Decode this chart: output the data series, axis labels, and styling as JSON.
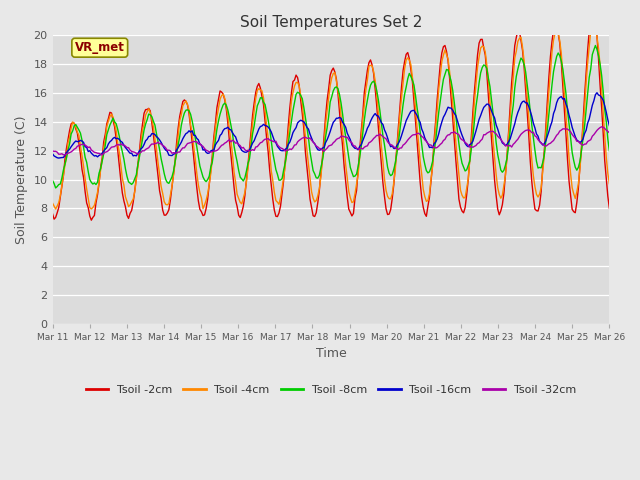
{
  "title": "Soil Temperatures Set 2",
  "xlabel": "Time",
  "ylabel": "Soil Temperature (C)",
  "ylim": [
    0,
    20
  ],
  "background_color": "#dcdcdc",
  "fig_background": "#e8e8e8",
  "legend_label": "VR_met",
  "series_colors": {
    "Tsoil -2cm": "#dd0000",
    "Tsoil -4cm": "#ff8800",
    "Tsoil -8cm": "#00cc00",
    "Tsoil -16cm": "#0000cc",
    "Tsoil -32cm": "#aa00aa"
  },
  "x_tick_labels": [
    "Mar 11",
    "Mar 12",
    "Mar 13",
    "Mar 14",
    "Mar 15",
    "Mar 16",
    "Mar 17",
    "Mar 18",
    "Mar 19",
    "Mar 20",
    "Mar 21",
    "Mar 22",
    "Mar 23",
    "Mar 24",
    "Mar 25",
    "Mar 26"
  ]
}
